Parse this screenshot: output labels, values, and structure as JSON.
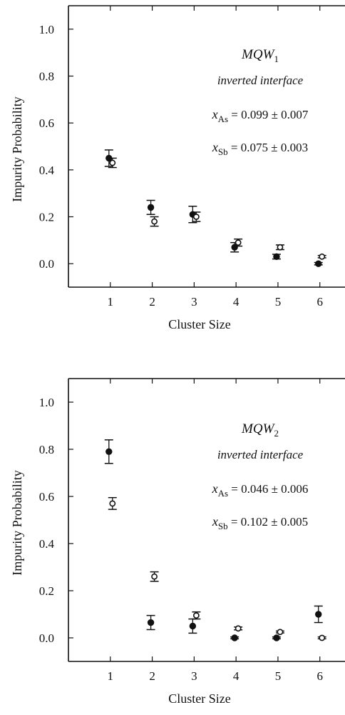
{
  "chart_data": [
    {
      "type": "scatter",
      "xlabel": "Cluster Size",
      "ylabel": "Impurity  Probability",
      "xticks": [
        "1",
        "2",
        "3",
        "4",
        "5",
        "6"
      ],
      "yticks": [
        "0.0",
        "0.2",
        "0.4",
        "0.6",
        "0.8",
        "1.0"
      ],
      "xlim": [
        0,
        6.6
      ],
      "ylim": [
        -0.1,
        1.1
      ],
      "grid": false,
      "annotations": {
        "name": "MQW",
        "name_sub": "1",
        "subtitle": "inverted interface",
        "line1_var": "x",
        "line1_sub": "As",
        "line1_value": "= 0.099 ± 0.007",
        "line2_var": "x",
        "line2_sub": "Sb",
        "line2_value": "= 0.075 ± 0.003"
      },
      "series": [
        {
          "marker": "filled",
          "x": [
            1,
            2,
            3,
            4,
            5,
            6
          ],
          "y": [
            0.45,
            0.24,
            0.21,
            0.07,
            0.03,
            0.0
          ],
          "err": [
            0.035,
            0.03,
            0.035,
            0.02,
            0.01,
            0.005
          ]
        },
        {
          "marker": "open",
          "x": [
            1,
            2,
            3,
            4,
            5,
            6
          ],
          "y": [
            0.43,
            0.18,
            0.2,
            0.09,
            0.07,
            0.03
          ],
          "err": [
            0.02,
            0.02,
            0.02,
            0.015,
            0.01,
            0.005
          ]
        }
      ]
    },
    {
      "type": "scatter",
      "xlabel": "Cluster Size",
      "ylabel": "Impurity  Probability",
      "xticks": [
        "1",
        "2",
        "3",
        "4",
        "5",
        "6"
      ],
      "yticks": [
        "0.0",
        "0.2",
        "0.4",
        "0.6",
        "0.8",
        "1.0"
      ],
      "xlim": [
        0,
        6.6
      ],
      "ylim": [
        -0.1,
        1.1
      ],
      "grid": false,
      "annotations": {
        "name": "MQW",
        "name_sub": "2",
        "subtitle": "inverted interface",
        "line1_var": "x",
        "line1_sub": "As",
        "line1_value": "= 0.046 ± 0.006",
        "line2_var": "x",
        "line2_sub": "Sb",
        "line2_value": "= 0.102 ± 0.005"
      },
      "series": [
        {
          "marker": "filled",
          "x": [
            1,
            2,
            3,
            4,
            5,
            6
          ],
          "y": [
            0.79,
            0.065,
            0.05,
            0.0,
            0.0,
            0.1
          ],
          "err": [
            0.05,
            0.03,
            0.03,
            0.004,
            0.004,
            0.035
          ]
        },
        {
          "marker": "open",
          "x": [
            1,
            2,
            3,
            4,
            5,
            6
          ],
          "y": [
            0.57,
            0.26,
            0.095,
            0.04,
            0.025,
            0.0
          ],
          "err": [
            0.025,
            0.02,
            0.015,
            0.006,
            0.004,
            0.004
          ]
        }
      ]
    }
  ]
}
